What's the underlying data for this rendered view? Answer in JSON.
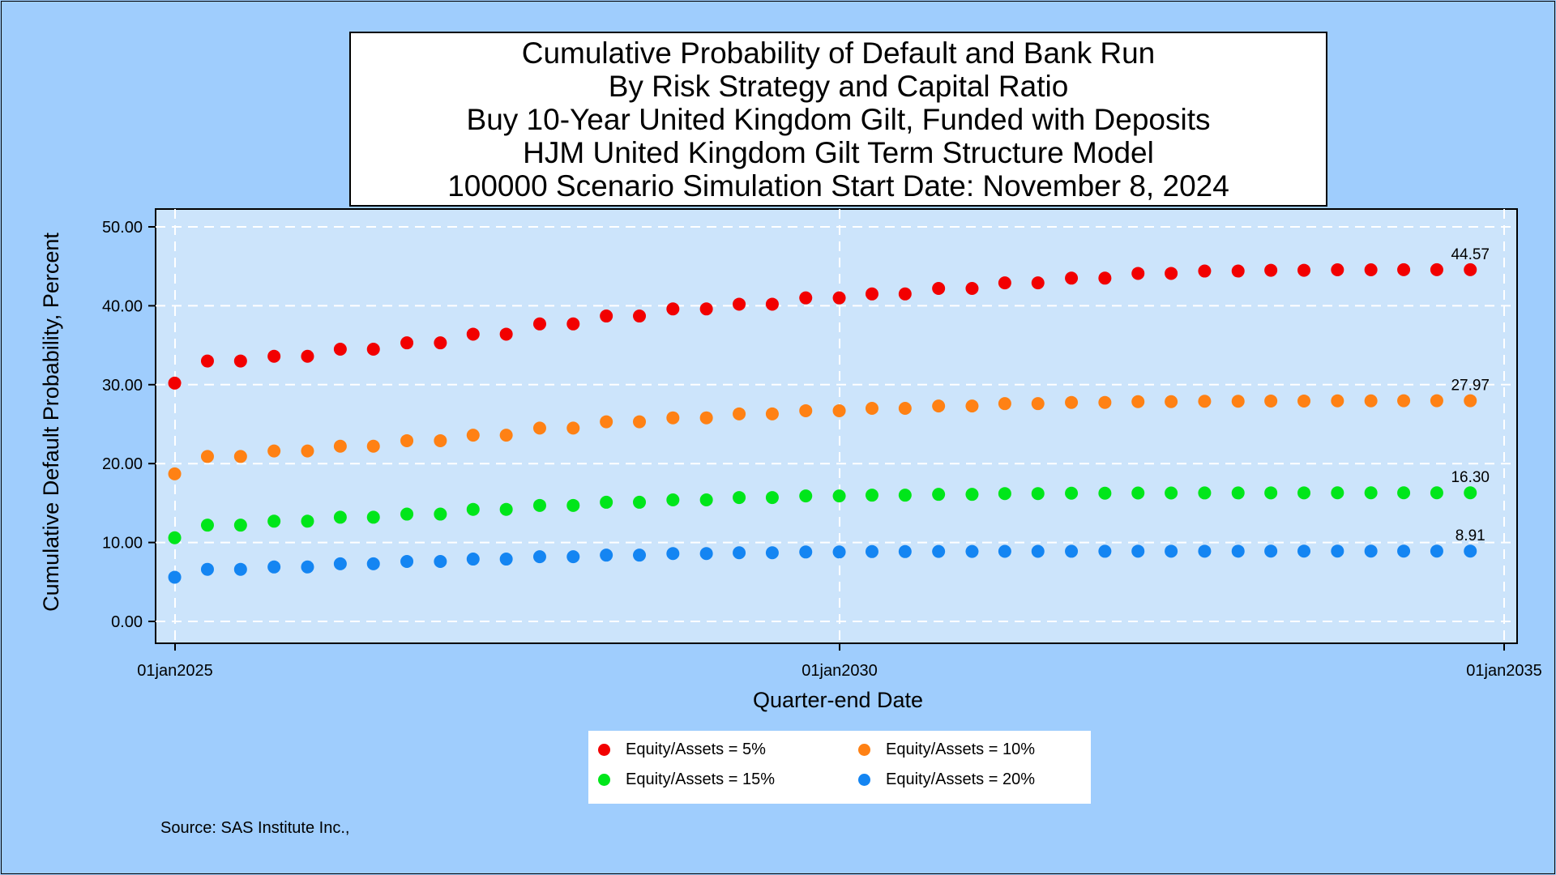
{
  "title_lines": [
    "Cumulative Probability of Default and Bank Run",
    "By Risk Strategy and Capital Ratio",
    "Buy 10-Year United Kingdom Gilt, Funded with Deposits",
    "HJM United Kingdom Gilt Term Structure Model",
    "100000 Scenario Simulation Start Date: November 8, 2024"
  ],
  "source": "Source: SAS Institute Inc.,",
  "colors": {
    "page_background": "#9fcdfd",
    "plot_background": "#cce4fb",
    "grid": "#ffffff"
  },
  "chart_data": {
    "type": "scatter",
    "title": "Cumulative Probability of Default and Bank Run",
    "xlabel": "Quarter-end Date",
    "ylabel": "Cumulative Default Probability, Percent",
    "x_tick_labels": [
      "01jan2025",
      "01jan2030",
      "01jan2035"
    ],
    "x_ticks": [
      "2025-01-01",
      "2030-01-01",
      "2035-01-01"
    ],
    "y_tick_labels": [
      "0.00",
      "10.00",
      "20.00",
      "30.00",
      "40.00",
      "50.00"
    ],
    "ylim": [
      0,
      50
    ],
    "xlim": [
      "2025-01-01",
      "2035-01-01"
    ],
    "grid": true,
    "legend_position": "bottom",
    "x": [
      "2024-12-31",
      "2025-03-31",
      "2025-06-30",
      "2025-09-30",
      "2025-12-31",
      "2026-03-31",
      "2026-06-30",
      "2026-09-30",
      "2026-12-31",
      "2027-03-31",
      "2027-06-30",
      "2027-09-30",
      "2027-12-31",
      "2028-03-31",
      "2028-06-30",
      "2028-09-30",
      "2028-12-31",
      "2029-03-31",
      "2029-06-30",
      "2029-09-30",
      "2029-12-31",
      "2030-03-31",
      "2030-06-30",
      "2030-09-30",
      "2030-12-31",
      "2031-03-31",
      "2031-06-30",
      "2031-09-30",
      "2031-12-31",
      "2032-03-31",
      "2032-06-30",
      "2032-09-30",
      "2032-12-31",
      "2033-03-31",
      "2033-06-30",
      "2033-09-30",
      "2033-12-31",
      "2034-03-31",
      "2034-06-30",
      "2034-09-30"
    ],
    "series": [
      {
        "name": "Equity/Assets = 5%",
        "color": "#f20000",
        "end_label": "44.57",
        "values": [
          30.2,
          33.0,
          33.0,
          33.6,
          33.6,
          34.5,
          34.5,
          35.3,
          35.3,
          36.4,
          36.4,
          37.7,
          37.7,
          38.7,
          38.7,
          39.6,
          39.6,
          40.2,
          40.2,
          41.0,
          41.0,
          41.5,
          41.5,
          42.2,
          42.2,
          42.9,
          42.9,
          43.5,
          43.5,
          44.1,
          44.1,
          44.4,
          44.4,
          44.5,
          44.5,
          44.56,
          44.56,
          44.57,
          44.57,
          44.57
        ]
      },
      {
        "name": "Equity/Assets = 10%",
        "color": "#ff8114",
        "end_label": "27.97",
        "values": [
          18.7,
          20.9,
          20.9,
          21.6,
          21.6,
          22.2,
          22.2,
          22.9,
          22.9,
          23.6,
          23.6,
          24.5,
          24.5,
          25.3,
          25.3,
          25.8,
          25.8,
          26.3,
          26.3,
          26.7,
          26.7,
          27.0,
          27.0,
          27.3,
          27.3,
          27.6,
          27.6,
          27.75,
          27.75,
          27.85,
          27.85,
          27.9,
          27.9,
          27.93,
          27.93,
          27.95,
          27.95,
          27.97,
          27.97,
          27.97
        ]
      },
      {
        "name": "Equity/Assets = 15%",
        "color": "#00e61a",
        "end_label": "16.30",
        "values": [
          10.6,
          12.2,
          12.2,
          12.7,
          12.7,
          13.2,
          13.2,
          13.6,
          13.6,
          14.2,
          14.2,
          14.7,
          14.7,
          15.1,
          15.1,
          15.4,
          15.4,
          15.7,
          15.7,
          15.9,
          15.9,
          16.0,
          16.0,
          16.1,
          16.1,
          16.2,
          16.2,
          16.25,
          16.25,
          16.27,
          16.27,
          16.28,
          16.28,
          16.29,
          16.29,
          16.3,
          16.3,
          16.3,
          16.3,
          16.3
        ]
      },
      {
        "name": "Equity/Assets = 20%",
        "color": "#1485f2",
        "end_label": "8.91",
        "values": [
          5.6,
          6.6,
          6.6,
          6.9,
          6.9,
          7.3,
          7.3,
          7.6,
          7.6,
          7.9,
          7.9,
          8.2,
          8.2,
          8.4,
          8.4,
          8.6,
          8.6,
          8.7,
          8.7,
          8.8,
          8.8,
          8.85,
          8.85,
          8.87,
          8.87,
          8.88,
          8.88,
          8.89,
          8.89,
          8.9,
          8.9,
          8.9,
          8.9,
          8.91,
          8.91,
          8.91,
          8.91,
          8.91,
          8.91,
          8.91
        ]
      }
    ]
  }
}
